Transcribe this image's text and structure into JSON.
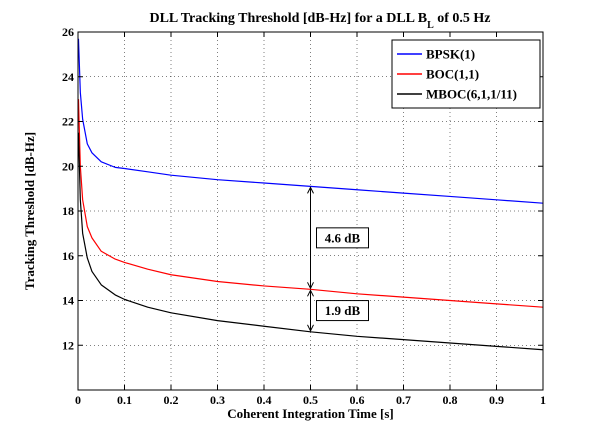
{
  "chart_data": {
    "type": "line",
    "title_main": "DLL Tracking Threshold [dB-Hz] for a DLL B",
    "title_sub": "L",
    "title_tail": " of 0.5 Hz",
    "xlabel": "Coherent Integration Time [s]",
    "ylabel": "Tracking Threshold [dB-Hz]",
    "xlim": [
      0,
      1
    ],
    "ylim": [
      10,
      26
    ],
    "xticks": [
      0,
      0.1,
      0.2,
      0.3,
      0.4,
      0.5,
      0.6,
      0.7,
      0.8,
      0.9,
      1
    ],
    "xtick_labels": [
      "0",
      "0.1",
      "0.2",
      "0.3",
      "0.4",
      "0.5",
      "0.6",
      "0.7",
      "0.8",
      "0.9",
      "1"
    ],
    "yticks": [
      12,
      14,
      16,
      18,
      20,
      22,
      24,
      26
    ],
    "ytick_labels": [
      "12",
      "14",
      "16",
      "18",
      "20",
      "22",
      "24",
      "26"
    ],
    "grid": true,
    "legend_position": "top-right",
    "series": [
      {
        "name": "BPSK(1)",
        "color": "#0000ff",
        "x": [
          0.001,
          0.005,
          0.01,
          0.02,
          0.03,
          0.05,
          0.08,
          0.1,
          0.15,
          0.2,
          0.3,
          0.4,
          0.5,
          0.6,
          0.7,
          0.8,
          0.9,
          1.0
        ],
        "y": [
          25.7,
          23.3,
          22.1,
          21.0,
          20.6,
          20.2,
          19.95,
          19.9,
          19.75,
          19.6,
          19.4,
          19.25,
          19.1,
          18.95,
          18.8,
          18.65,
          18.5,
          18.35
        ]
      },
      {
        "name": "BOC(1,1)",
        "color": "#ff0000",
        "x": [
          0.001,
          0.005,
          0.01,
          0.02,
          0.03,
          0.05,
          0.08,
          0.1,
          0.15,
          0.2,
          0.3,
          0.4,
          0.5,
          0.6,
          0.7,
          0.8,
          0.9,
          1.0
        ],
        "y": [
          23.0,
          20.0,
          18.5,
          17.3,
          16.8,
          16.2,
          15.85,
          15.7,
          15.4,
          15.15,
          14.85,
          14.65,
          14.5,
          14.3,
          14.15,
          14.0,
          13.85,
          13.7
        ]
      },
      {
        "name": "MBOC(6,1,1/11)",
        "color": "#000000",
        "x": [
          0.001,
          0.005,
          0.01,
          0.02,
          0.03,
          0.05,
          0.08,
          0.1,
          0.15,
          0.2,
          0.3,
          0.4,
          0.5,
          0.6,
          0.7,
          0.8,
          0.9,
          1.0
        ],
        "y": [
          21.5,
          18.5,
          17.0,
          15.9,
          15.3,
          14.7,
          14.25,
          14.05,
          13.7,
          13.45,
          13.1,
          12.85,
          12.6,
          12.4,
          12.25,
          12.1,
          11.95,
          11.8
        ]
      }
    ],
    "annotations": [
      {
        "text": "4.6 dB",
        "x": 0.5,
        "y_from": 19.1,
        "y_to": 14.5
      },
      {
        "text": "1.9 dB",
        "x": 0.5,
        "y_from": 14.5,
        "y_to": 12.6
      }
    ]
  }
}
